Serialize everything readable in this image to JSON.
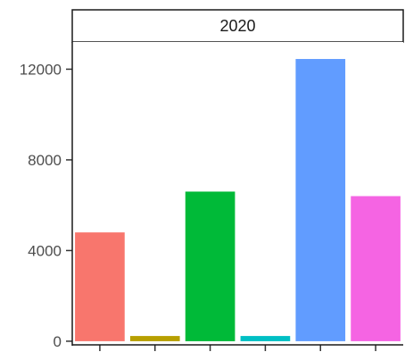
{
  "chart_data": {
    "type": "bar",
    "facet_label": "2020",
    "categories": [
      "",
      "",
      "",
      "",
      "",
      ""
    ],
    "values": [
      4800,
      230,
      6600,
      230,
      12450,
      6400
    ],
    "colors": [
      "#F8766D",
      "#B79F00",
      "#00BA38",
      "#00BFC4",
      "#619CFF",
      "#F564E3"
    ],
    "ylim": [
      -200,
      13200
    ],
    "yticks": [
      0,
      4000,
      8000,
      12000
    ],
    "ytick_labels": [
      "0",
      "4000",
      "8000",
      "12000"
    ],
    "xlabel": "",
    "ylabel": "",
    "title": "",
    "grid": false,
    "legend": "none"
  }
}
